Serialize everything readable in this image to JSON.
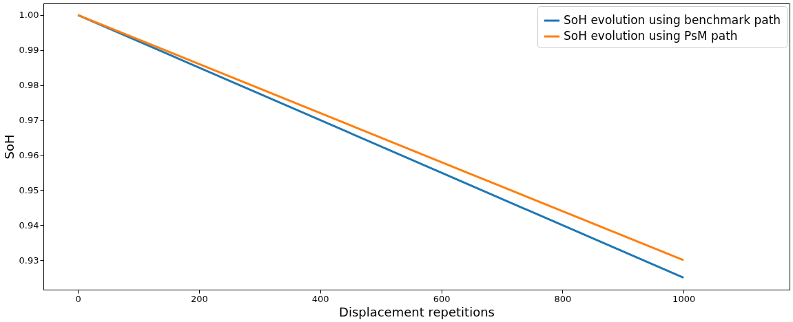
{
  "chart_data": {
    "type": "line",
    "xlabel": "Displacement repetitions",
    "ylabel": "SoH",
    "x": [
      0,
      1000
    ],
    "series": [
      {
        "name": "SoH evolution using benchmark path",
        "color": "#1f77b4",
        "values": [
          1.0,
          0.925
        ]
      },
      {
        "name": "SoH evolution using PsM path",
        "color": "#ff7f0e",
        "values": [
          1.0,
          0.93
        ]
      }
    ],
    "xlim": [
      -57,
      1175
    ],
    "ylim": [
      0.9216,
      1.0033
    ],
    "xticks": [
      0,
      200,
      400,
      600,
      800,
      1000
    ],
    "yticks": [
      {
        "value": 0.93,
        "label": "0.93"
      },
      {
        "value": 0.94,
        "label": "0.94"
      },
      {
        "value": 0.95,
        "label": "0.95"
      },
      {
        "value": 0.96,
        "label": "0.96"
      },
      {
        "value": 0.97,
        "label": "0.97"
      },
      {
        "value": 0.98,
        "label": "0.98"
      },
      {
        "value": 0.99,
        "label": "0.99"
      },
      {
        "value": 1.0,
        "label": "1.00"
      }
    ],
    "legend": "top right",
    "grid": false,
    "line_style": "solid",
    "marker": "none"
  }
}
